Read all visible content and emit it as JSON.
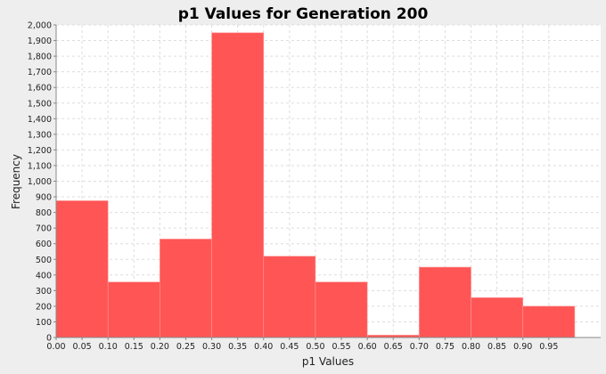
{
  "chart_data": {
    "type": "bar",
    "title": "p1 Values for Generation 200",
    "xlabel": "p1 Values",
    "ylabel": "Frequency",
    "bin_edges": [
      0.0,
      0.1,
      0.2,
      0.3,
      0.4,
      0.5,
      0.6,
      0.7,
      0.8,
      0.9,
      1.0
    ],
    "values": [
      875,
      355,
      630,
      1950,
      520,
      355,
      15,
      450,
      255,
      200
    ],
    "xlim": [
      0.0,
      1.05
    ],
    "ylim": [
      0,
      2000
    ],
    "x_ticks": [
      "0.00",
      "0.05",
      "0.10",
      "0.15",
      "0.20",
      "0.25",
      "0.30",
      "0.35",
      "0.40",
      "0.45",
      "0.50",
      "0.55",
      "0.60",
      "0.65",
      "0.70",
      "0.75",
      "0.80",
      "0.85",
      "0.90",
      "0.95"
    ],
    "y_ticks": [
      "0",
      "100",
      "200",
      "300",
      "400",
      "500",
      "600",
      "700",
      "800",
      "900",
      "1,000",
      "1,100",
      "1,200",
      "1,300",
      "1,400",
      "1,500",
      "1,600",
      "1,700",
      "1,800",
      "1,900",
      "2,000"
    ],
    "grid": true,
    "bar_color": "#ff5555",
    "plot_background": "#ffffff",
    "grid_color": "#dddddd"
  }
}
